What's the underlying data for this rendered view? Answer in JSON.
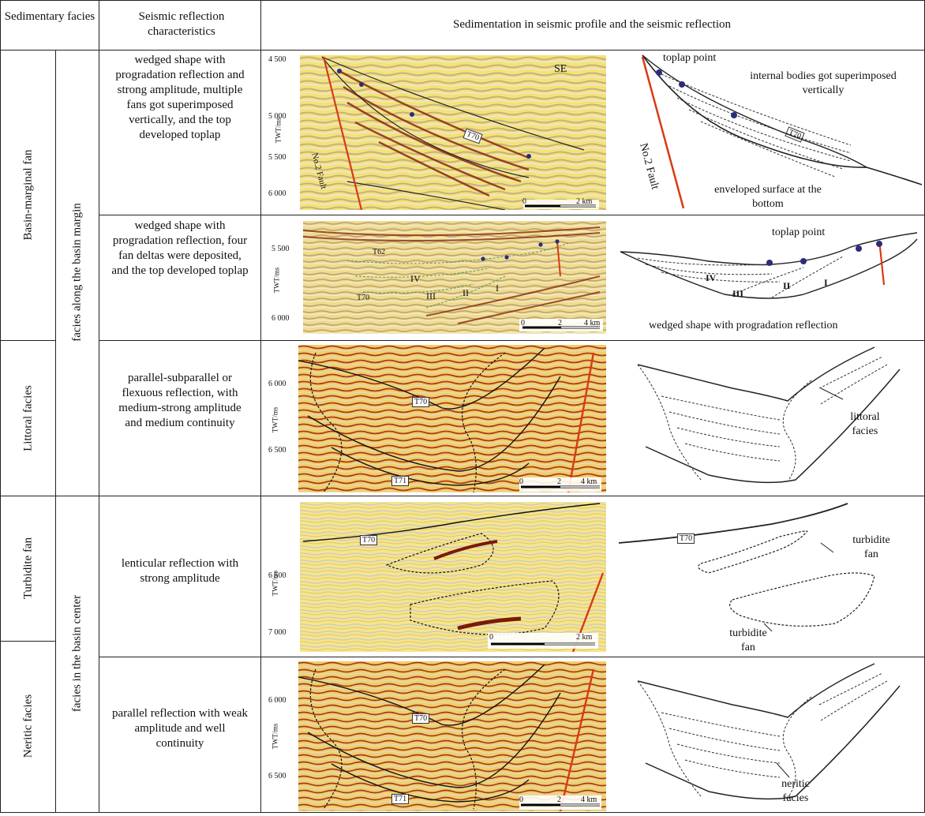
{
  "header": {
    "col1": "Sedimentary facies",
    "col2": "Seismic reflection characteristics",
    "col3": "Sedimentation in seismic profile and the seismic reflection"
  },
  "facies": {
    "basin_marginal_fan": "Basin-marginal fan",
    "littoral": "Littoral facies",
    "turbidite": "Turbidite fan",
    "neritic": "Neritic facies"
  },
  "groups": {
    "basin_margin": "facies along the basin margin",
    "basin_center": "facies in the basin center"
  },
  "rows": [
    {
      "desc": "wedged shape with progradation reflection and strong amplitude, multiple fans got superimposed vertically, and the top developed toplap",
      "seismic": {
        "y_ticks": [
          "4 500",
          "5 000",
          "5 500",
          "6 000"
        ],
        "y_unit": "TWT/ms",
        "labels": {
          "direction": "SE",
          "horizon": "T70",
          "fault": "No.2 Fault"
        },
        "scale": {
          "start": "0",
          "end": "2 km"
        }
      },
      "sketch": {
        "toplap": "toplap point",
        "internal": "internal bodies got superimposed vertically",
        "horizon": "T70",
        "fault": "No.2 Fault",
        "bottom": "enveloped surface at the bottom"
      }
    },
    {
      "desc": "wedged shape with progradation reflection, four fan deltas were deposited, and the top developed toplap",
      "seismic": {
        "y_ticks": [
          "5 500",
          "6 000"
        ],
        "y_unit": "TWT/ms",
        "labels": {
          "t62": "T62",
          "t70": "T70",
          "iv": "IV",
          "iii": "III",
          "ii": "II",
          "i": "I"
        },
        "scale": {
          "start": "0",
          "mid": "2",
          "end": "4 km"
        }
      },
      "sketch": {
        "toplap": "toplap point",
        "iv": "IV",
        "iii": "III",
        "ii": "II",
        "i": "I",
        "caption": "wedged shape with progradation reflection"
      }
    },
    {
      "desc": "parallel-subparallel or flexuous reflection, with medium-strong amplitude and medium continuity",
      "seismic": {
        "y_ticks": [
          "6 000",
          "6 500"
        ],
        "y_unit": "TWT/ms",
        "labels": {
          "t70": "T70",
          "t71": "T71"
        },
        "scale": {
          "start": "0",
          "mid": "2",
          "end": "4 km"
        }
      },
      "sketch": {
        "label": "littoral facies"
      }
    },
    {
      "desc": "lenticular reflection with strong amplitude",
      "seismic": {
        "y_ticks": [
          "6 500",
          "7 000"
        ],
        "y_unit": "TWT/ms",
        "labels": {
          "t70": "T70"
        },
        "scale": {
          "start": "0",
          "end": "2 km"
        }
      },
      "sketch": {
        "horizon": "T70",
        "upper": "turbidite fan",
        "lower": "turbidite fan"
      }
    },
    {
      "desc": "parallel reflection with weak amplitude and well continuity",
      "seismic": {
        "y_ticks": [
          "6 000",
          "6 500"
        ],
        "y_unit": "TWT/ms",
        "labels": {
          "t70": "T70",
          "t71": "T71"
        },
        "scale": {
          "start": "0",
          "mid": "2",
          "end": "4 km"
        }
      },
      "sketch": {
        "label": "neritic facies"
      }
    }
  ]
}
